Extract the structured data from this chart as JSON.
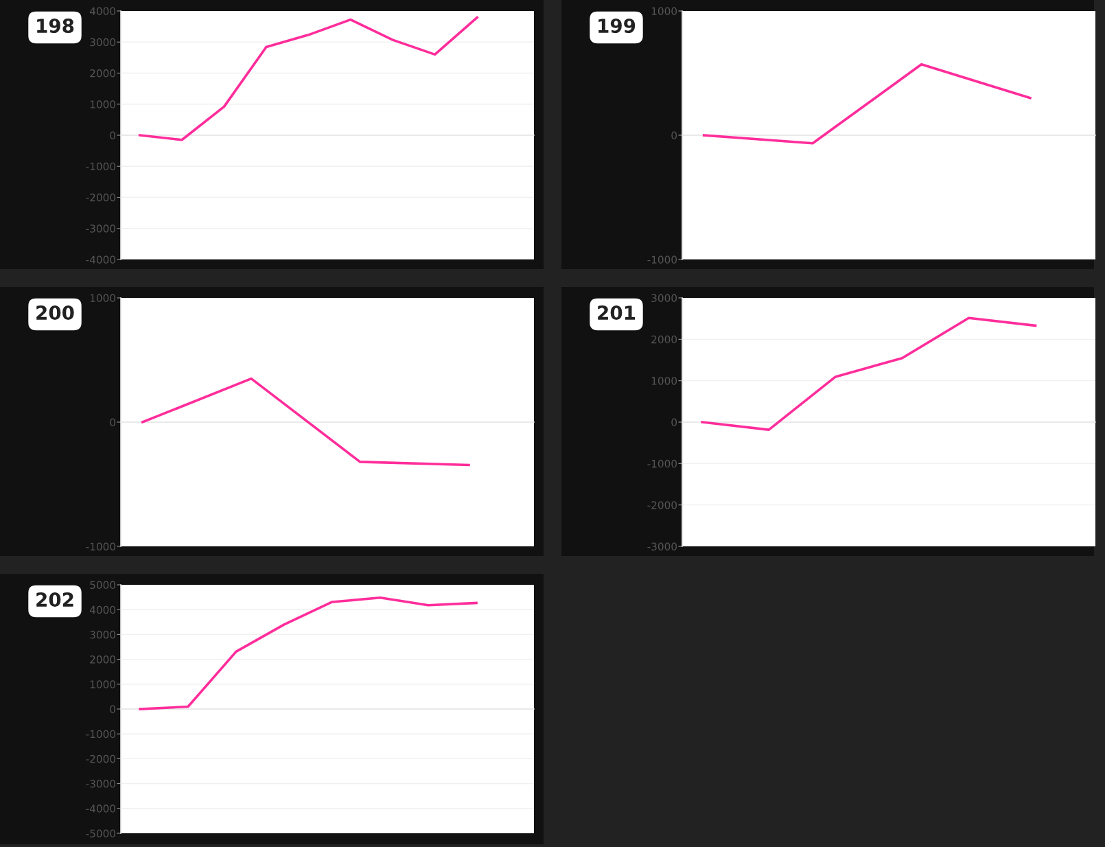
{
  "chart_data": [
    {
      "type": "line",
      "title": "198",
      "categories": [
        null,
        null,
        null,
        null,
        null,
        null,
        null,
        null,
        null
      ],
      "series": [
        {
          "color": "#ff2d9b",
          "values": [
            0,
            -150,
            920,
            2840,
            3230,
            3720,
            3070,
            2600,
            3790
          ]
        }
      ],
      "ylim": [
        -4000,
        4000
      ],
      "yticks": [
        -4000,
        -3000,
        -2000,
        -1000,
        0,
        1000,
        2000,
        3000,
        4000
      ],
      "tick_labels": "y",
      "grid": "y",
      "marker": "none",
      "line_style": "solid"
    },
    {
      "type": "line",
      "title": "199",
      "categories": [
        null,
        null,
        null,
        null
      ],
      "series": [
        {
          "color": "#ff2d9b",
          "values": [
            0,
            -65,
            570,
            300
          ]
        }
      ],
      "ylim": [
        -1000,
        1000
      ],
      "yticks": [
        -1000,
        0,
        1000
      ],
      "tick_labels": "y",
      "grid": "y",
      "marker": "none",
      "line_style": "solid"
    },
    {
      "type": "line",
      "title": "200",
      "categories": [
        null,
        null,
        null,
        null
      ],
      "series": [
        {
          "color": "#ff2d9b",
          "values": [
            0,
            350,
            -320,
            -345
          ]
        }
      ],
      "ylim": [
        -1000,
        1000
      ],
      "yticks": [
        -1000,
        0,
        1000
      ],
      "tick_labels": "y",
      "grid": "y",
      "marker": "none",
      "line_style": "solid"
    },
    {
      "type": "line",
      "title": "201",
      "categories": [
        null,
        null,
        null,
        null,
        null,
        null
      ],
      "series": [
        {
          "color": "#ff2d9b",
          "values": [
            0,
            -185,
            1095,
            1545,
            2515,
            2330
          ]
        }
      ],
      "ylim": [
        -3000,
        3000
      ],
      "yticks": [
        -3000,
        -2000,
        -1000,
        0,
        1000,
        2000,
        3000
      ],
      "tick_labels": "y",
      "grid": "y",
      "marker": "none",
      "line_style": "solid"
    },
    {
      "type": "line",
      "title": "202",
      "categories": [
        null,
        null,
        null,
        null,
        null,
        null,
        null,
        null
      ],
      "series": [
        {
          "color": "#ff2d9b",
          "values": [
            0,
            95,
            2310,
            3400,
            4310,
            4480,
            4180,
            4270
          ]
        }
      ],
      "ylim": [
        -5000,
        5000
      ],
      "yticks": [
        -5000,
        -4000,
        -3000,
        -2000,
        -1000,
        0,
        1000,
        2000,
        3000,
        4000,
        5000
      ],
      "tick_labels": "y",
      "grid": "y",
      "marker": "none",
      "line_style": "solid"
    }
  ]
}
